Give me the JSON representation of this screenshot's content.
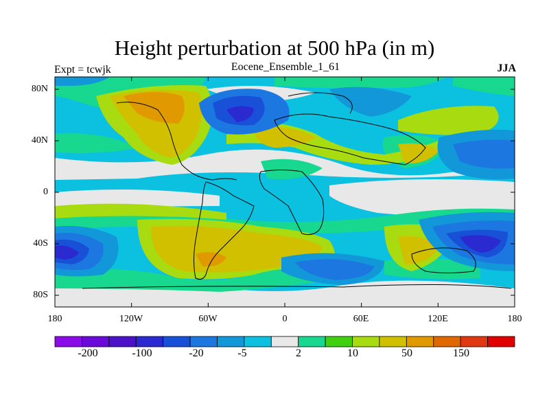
{
  "title": "Height perturbation at 500 hPa (in m)",
  "experiment_label": "Expt = tcwjk",
  "subtitle": "Eocene_Ensemble_1_61",
  "season": "JJA",
  "lat_ticks": [
    "80N",
    "40N",
    "0",
    "40S",
    "80S"
  ],
  "lon_ticks": [
    "180",
    "120W",
    "60W",
    "0",
    "60E",
    "120E",
    "180"
  ],
  "colorbar": {
    "colors": [
      "#8a0ce8",
      "#6a0ad8",
      "#4b12c8",
      "#2a2ad0",
      "#1850d8",
      "#1c78e0",
      "#1298d8",
      "#0cc0e0",
      "#e8e8e8",
      "#18d890",
      "#40d010",
      "#a8dc10",
      "#d0c000",
      "#e09a00",
      "#e06800",
      "#e03810",
      "#e00000"
    ],
    "labels": [
      "-200",
      "-100",
      "-20",
      "-5",
      "2",
      "10",
      "50",
      "150"
    ]
  }
}
